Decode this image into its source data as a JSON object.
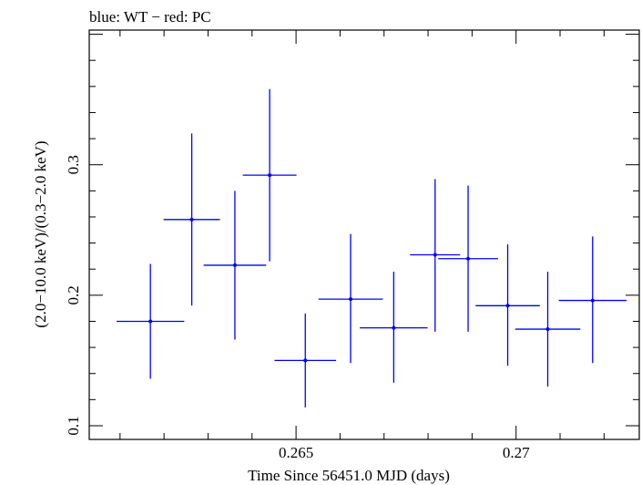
{
  "chart_data": {
    "type": "scatter",
    "title": "blue: WT − red: PC",
    "xlabel": "Time Since 56451.0 MJD (days)",
    "ylabel": "(2.0−10.0 keV)/(0.3−2.0 keV)",
    "xlim": [
      0.2603,
      0.2728
    ],
    "ylim": [
      0.0895,
      0.4032
    ],
    "x_ticks_major": [
      0.265,
      0.27
    ],
    "x_tick_labels": [
      "0.265",
      "0.27"
    ],
    "y_ticks_major": [
      0.1,
      0.2,
      0.3
    ],
    "y_tick_labels": [
      "0.1",
      "0.2",
      "0.3"
    ],
    "grid": false,
    "series": [
      {
        "color": "#0000ff",
        "marker": "dot",
        "points": [
          {
            "x": 0.26169,
            "xerr": 0.00077,
            "y": 0.18,
            "yerr_lo": 0.044,
            "yerr_hi": 0.044
          },
          {
            "x": 0.26263,
            "xerr": 0.00064,
            "y": 0.258,
            "yerr_lo": 0.066,
            "yerr_hi": 0.066
          },
          {
            "x": 0.26361,
            "xerr": 0.00071,
            "y": 0.223,
            "yerr_lo": 0.057,
            "yerr_hi": 0.057
          },
          {
            "x": 0.2644,
            "xerr": 0.00061,
            "y": 0.292,
            "yerr_lo": 0.066,
            "yerr_hi": 0.066
          },
          {
            "x": 0.26521,
            "xerr": 0.0007,
            "y": 0.15,
            "yerr_lo": 0.036,
            "yerr_hi": 0.036
          },
          {
            "x": 0.26624,
            "xerr": 0.00073,
            "y": 0.197,
            "yerr_lo": 0.049,
            "yerr_hi": 0.05
          },
          {
            "x": 0.26722,
            "xerr": 0.00077,
            "y": 0.175,
            "yerr_lo": 0.042,
            "yerr_hi": 0.043
          },
          {
            "x": 0.26816,
            "xerr": 0.00057,
            "y": 0.231,
            "yerr_lo": 0.059,
            "yerr_hi": 0.058
          },
          {
            "x": 0.26891,
            "xerr": 0.00068,
            "y": 0.228,
            "yerr_lo": 0.056,
            "yerr_hi": 0.056
          },
          {
            "x": 0.26981,
            "xerr": 0.00073,
            "y": 0.192,
            "yerr_lo": 0.046,
            "yerr_hi": 0.047
          },
          {
            "x": 0.27072,
            "xerr": 0.00074,
            "y": 0.174,
            "yerr_lo": 0.044,
            "yerr_hi": 0.044
          },
          {
            "x": 0.27174,
            "xerr": 0.00077,
            "y": 0.196,
            "yerr_lo": 0.048,
            "yerr_hi": 0.049
          }
        ]
      }
    ]
  }
}
